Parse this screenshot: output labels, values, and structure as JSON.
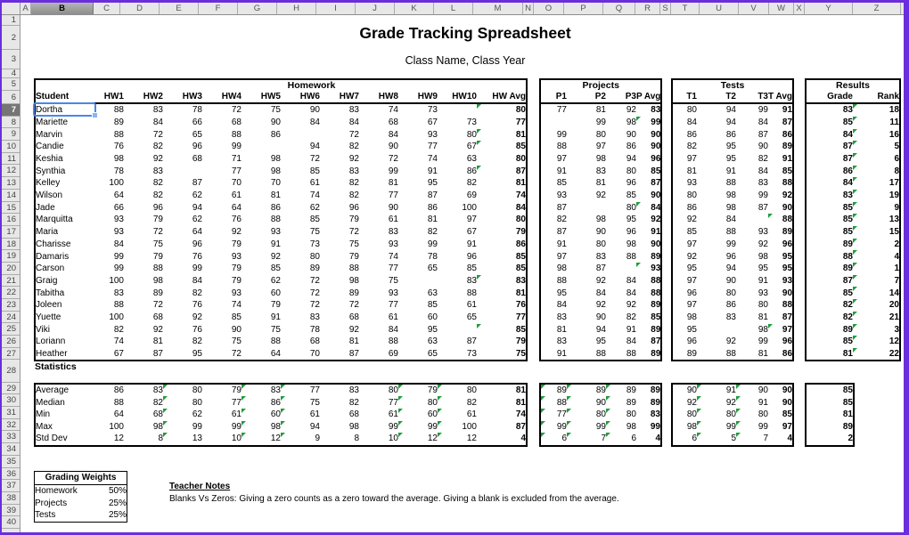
{
  "colors": {
    "window_border": "#6A2EDC",
    "flag_green": "#1E9E3C",
    "selection_blue": "#4A86E8",
    "header_bg": "#E7E7E7",
    "selected_header_bg": "#757575"
  },
  "spreadsheet": {
    "column_letters": [
      "A",
      "B",
      "C",
      "D",
      "E",
      "F",
      "G",
      "H",
      "I",
      "J",
      "K",
      "L",
      "M",
      "N",
      "O",
      "P",
      "Q",
      "R",
      "S",
      "T",
      "U",
      "V",
      "W",
      "X",
      "Y",
      "Z"
    ],
    "row_count": 40,
    "selected_column": "B",
    "selected_row": 7
  },
  "title": {
    "main": "Grade Tracking Spreadsheet",
    "sub": "Class Name, Class Year"
  },
  "homework_table": {
    "section": "Homework",
    "student_header": "Student",
    "hw_headers": [
      "HW1",
      "HW2",
      "HW3",
      "HW4",
      "HW5",
      "HW6",
      "HW7",
      "HW8",
      "HW9",
      "HW10"
    ],
    "avg_header": "HW Avg"
  },
  "projects_table": {
    "section": "Projects",
    "headers": [
      "P1",
      "P2",
      "P3"
    ],
    "avg_header": "P Avg"
  },
  "tests_table": {
    "section": "Tests",
    "headers": [
      "T1",
      "T2",
      "T3"
    ],
    "avg_header": "T Avg"
  },
  "results_table": {
    "section": "Results",
    "grade_header": "Grade",
    "rank_header": "Rank"
  },
  "students": [
    {
      "name": "Dortha",
      "hw": [
        88,
        83,
        78,
        72,
        75,
        90,
        83,
        74,
        73,
        null
      ],
      "hw_avg": 80,
      "p": [
        77,
        81,
        92
      ],
      "p_avg": 83,
      "t": [
        80,
        94,
        99
      ],
      "t_avg": 91,
      "grade": 83,
      "rank": 18,
      "flags": [
        "hw_avg",
        "rank"
      ]
    },
    {
      "name": "Mariette",
      "hw": [
        89,
        84,
        66,
        68,
        90,
        84,
        84,
        68,
        67,
        73
      ],
      "hw_avg": 77,
      "p": [
        null,
        99,
        98
      ],
      "p_avg": 99,
      "t": [
        84,
        94,
        84
      ],
      "t_avg": 87,
      "grade": 85,
      "rank": 11,
      "flags": [
        "p_avg",
        "rank"
      ]
    },
    {
      "name": "Marvin",
      "hw": [
        88,
        72,
        65,
        88,
        86,
        null,
        72,
        84,
        93,
        80
      ],
      "hw_avg": 81,
      "p": [
        99,
        80,
        90
      ],
      "p_avg": 90,
      "t": [
        86,
        86,
        87
      ],
      "t_avg": 86,
      "grade": 84,
      "rank": 16,
      "flags": [
        "hw_avg",
        "rank"
      ]
    },
    {
      "name": "Candie",
      "hw": [
        76,
        82,
        96,
        99,
        null,
        94,
        82,
        90,
        77,
        67
      ],
      "hw_avg": 85,
      "p": [
        88,
        97,
        86
      ],
      "p_avg": 90,
      "t": [
        82,
        95,
        90
      ],
      "t_avg": 89,
      "grade": 87,
      "rank": 5,
      "flags": [
        "hw_avg",
        "rank"
      ]
    },
    {
      "name": "Keshia",
      "hw": [
        98,
        92,
        68,
        71,
        98,
        72,
        92,
        72,
        74,
        63
      ],
      "hw_avg": 80,
      "p": [
        97,
        98,
        94
      ],
      "p_avg": 96,
      "t": [
        97,
        95,
        82
      ],
      "t_avg": 91,
      "grade": 87,
      "rank": 6,
      "flags": [
        "rank"
      ]
    },
    {
      "name": "Synthia",
      "hw": [
        78,
        83,
        null,
        77,
        98,
        85,
        83,
        99,
        91,
        86
      ],
      "hw_avg": 87,
      "p": [
        91,
        83,
        80
      ],
      "p_avg": 85,
      "t": [
        81,
        91,
        84
      ],
      "t_avg": 85,
      "grade": 86,
      "rank": 8,
      "flags": [
        "hw_avg",
        "rank"
      ]
    },
    {
      "name": "Kelley",
      "hw": [
        100,
        82,
        87,
        70,
        70,
        61,
        82,
        81,
        95,
        82
      ],
      "hw_avg": 81,
      "p": [
        85,
        81,
        96
      ],
      "p_avg": 87,
      "t": [
        93,
        88,
        83
      ],
      "t_avg": 88,
      "grade": 84,
      "rank": 17,
      "flags": [
        "rank"
      ]
    },
    {
      "name": "Wilson",
      "hw": [
        64,
        82,
        62,
        61,
        81,
        74,
        82,
        77,
        87,
        69
      ],
      "hw_avg": 74,
      "p": [
        93,
        92,
        85
      ],
      "p_avg": 90,
      "t": [
        80,
        98,
        99
      ],
      "t_avg": 92,
      "grade": 83,
      "rank": 19,
      "flags": [
        "rank"
      ]
    },
    {
      "name": "Jade",
      "hw": [
        66,
        96,
        94,
        64,
        86,
        62,
        96,
        90,
        86,
        100
      ],
      "hw_avg": 84,
      "p": [
        87,
        null,
        80
      ],
      "p_avg": 84,
      "t": [
        86,
        98,
        87
      ],
      "t_avg": 90,
      "grade": 85,
      "rank": 9,
      "flags": [
        "p_avg",
        "rank"
      ]
    },
    {
      "name": "Marquitta",
      "hw": [
        93,
        79,
        62,
        76,
        88,
        85,
        79,
        61,
        81,
        97
      ],
      "hw_avg": 80,
      "p": [
        82,
        98,
        95
      ],
      "p_avg": 92,
      "t": [
        92,
        84,
        null
      ],
      "t_avg": 88,
      "grade": 85,
      "rank": 13,
      "flags": [
        "t_avg",
        "rank"
      ]
    },
    {
      "name": "Maria",
      "hw": [
        93,
        72,
        64,
        92,
        93,
        75,
        72,
        83,
        82,
        67
      ],
      "hw_avg": 79,
      "p": [
        87,
        90,
        96
      ],
      "p_avg": 91,
      "t": [
        85,
        88,
        93
      ],
      "t_avg": 89,
      "grade": 85,
      "rank": 15,
      "flags": [
        "rank"
      ]
    },
    {
      "name": "Charisse",
      "hw": [
        84,
        75,
        96,
        79,
        91,
        73,
        75,
        93,
        99,
        91
      ],
      "hw_avg": 86,
      "p": [
        91,
        80,
        98
      ],
      "p_avg": 90,
      "t": [
        97,
        99,
        92
      ],
      "t_avg": 96,
      "grade": 89,
      "rank": 2,
      "flags": [
        "rank"
      ]
    },
    {
      "name": "Damaris",
      "hw": [
        99,
        79,
        76,
        93,
        92,
        80,
        79,
        74,
        78,
        96
      ],
      "hw_avg": 85,
      "p": [
        97,
        83,
        88
      ],
      "p_avg": 89,
      "t": [
        92,
        96,
        98
      ],
      "t_avg": 95,
      "grade": 88,
      "rank": 4,
      "flags": [
        "rank"
      ]
    },
    {
      "name": "Carson",
      "hw": [
        99,
        88,
        99,
        79,
        85,
        89,
        88,
        77,
        65,
        85
      ],
      "hw_avg": 85,
      "p": [
        98,
        87,
        null
      ],
      "p_avg": 93,
      "t": [
        95,
        94,
        95
      ],
      "t_avg": 95,
      "grade": 89,
      "rank": 1,
      "flags": [
        "p_avg",
        "rank"
      ]
    },
    {
      "name": "Graig",
      "hw": [
        100,
        98,
        84,
        79,
        62,
        72,
        98,
        75,
        null,
        83
      ],
      "hw_avg": 83,
      "p": [
        88,
        92,
        84
      ],
      "p_avg": 88,
      "t": [
        97,
        90,
        91
      ],
      "t_avg": 93,
      "grade": 87,
      "rank": 7,
      "flags": [
        "hw_avg",
        "rank"
      ]
    },
    {
      "name": "Tabitha",
      "hw": [
        83,
        89,
        82,
        93,
        60,
        72,
        89,
        93,
        63,
        88
      ],
      "hw_avg": 81,
      "p": [
        95,
        84,
        84
      ],
      "p_avg": 88,
      "t": [
        96,
        80,
        93
      ],
      "t_avg": 90,
      "grade": 85,
      "rank": 14,
      "flags": [
        "rank"
      ]
    },
    {
      "name": "Joleen",
      "hw": [
        88,
        72,
        76,
        74,
        79,
        72,
        72,
        77,
        85,
        61
      ],
      "hw_avg": 76,
      "p": [
        84,
        92,
        92
      ],
      "p_avg": 89,
      "t": [
        97,
        86,
        80
      ],
      "t_avg": 88,
      "grade": 82,
      "rank": 20,
      "flags": [
        "rank"
      ]
    },
    {
      "name": "Yuette",
      "hw": [
        100,
        68,
        92,
        85,
        91,
        83,
        68,
        61,
        60,
        65
      ],
      "hw_avg": 77,
      "p": [
        83,
        90,
        82
      ],
      "p_avg": 85,
      "t": [
        98,
        83,
        81
      ],
      "t_avg": 87,
      "grade": 82,
      "rank": 21,
      "flags": [
        "rank"
      ]
    },
    {
      "name": "Viki",
      "hw": [
        82,
        92,
        76,
        90,
        75,
        78,
        92,
        84,
        95,
        null
      ],
      "hw_avg": 85,
      "p": [
        81,
        94,
        91
      ],
      "p_avg": 89,
      "t": [
        95,
        null,
        98
      ],
      "t_avg": 97,
      "grade": 89,
      "rank": 3,
      "flags": [
        "hw_avg",
        "t_avg",
        "rank"
      ]
    },
    {
      "name": "Loriann",
      "hw": [
        74,
        81,
        82,
        75,
        88,
        68,
        81,
        88,
        63,
        87
      ],
      "hw_avg": 79,
      "p": [
        83,
        95,
        84
      ],
      "p_avg": 87,
      "t": [
        96,
        92,
        99
      ],
      "t_avg": 96,
      "grade": 85,
      "rank": 12,
      "flags": [
        "rank"
      ]
    },
    {
      "name": "Heather",
      "hw": [
        67,
        87,
        95,
        72,
        64,
        70,
        87,
        69,
        65,
        73
      ],
      "hw_avg": 75,
      "p": [
        91,
        88,
        88
      ],
      "p_avg": 89,
      "t": [
        89,
        88,
        81
      ],
      "t_avg": 86,
      "grade": 81,
      "rank": 22,
      "flags": [
        "rank"
      ]
    }
  ],
  "statistics": {
    "label": "Statistics",
    "rows": [
      {
        "label": "Average",
        "hw": [
          86,
          83,
          80,
          79,
          83,
          77,
          83,
          80,
          79,
          80
        ],
        "hw_avg": 81,
        "p": [
          89,
          89,
          89
        ],
        "p_avg": 89,
        "t": [
          90,
          91,
          90
        ],
        "t_avg": 90,
        "grade": 85
      },
      {
        "label": "Median",
        "hw": [
          88,
          82,
          80,
          77,
          86,
          75,
          82,
          77,
          80,
          82
        ],
        "hw_avg": 81,
        "p": [
          88,
          90,
          89
        ],
        "p_avg": 89,
        "t": [
          92,
          92,
          91
        ],
        "t_avg": 90,
        "grade": 85
      },
      {
        "label": "Min",
        "hw": [
          64,
          68,
          62,
          61,
          60,
          61,
          68,
          61,
          60,
          61
        ],
        "hw_avg": 74,
        "p": [
          77,
          80,
          80
        ],
        "p_avg": 83,
        "t": [
          80,
          80,
          80
        ],
        "t_avg": 85,
        "grade": 81
      },
      {
        "label": "Max",
        "hw": [
          100,
          98,
          99,
          99,
          98,
          94,
          98,
          99,
          99,
          100
        ],
        "hw_avg": 87,
        "p": [
          99,
          99,
          98
        ],
        "p_avg": 99,
        "t": [
          98,
          99,
          99
        ],
        "t_avg": 97,
        "grade": 89
      },
      {
        "label": "Std Dev",
        "hw": [
          12,
          8,
          13,
          10,
          12,
          9,
          8,
          10,
          12,
          12
        ],
        "hw_avg": 4,
        "p": [
          6,
          7,
          6
        ],
        "p_avg": 4,
        "t": [
          6,
          5,
          7
        ],
        "t_avg": 4,
        "grade": 2
      }
    ],
    "flagged_columns": {
      "hw": [
        2,
        4,
        5,
        8,
        9
      ],
      "p": [
        0,
        1,
        2
      ],
      "t": [
        1,
        2
      ]
    }
  },
  "grading_weights": {
    "title": "Grading Weights",
    "rows": [
      {
        "label": "Homework",
        "value": "50%"
      },
      {
        "label": "Projects",
        "value": "25%"
      },
      {
        "label": "Tests",
        "value": "25%"
      }
    ]
  },
  "teacher_notes": {
    "title": "Teacher Notes",
    "body": "Blanks Vs Zeros: Giving a zero counts as a zero toward the average. Giving a blank is excluded from the average."
  }
}
